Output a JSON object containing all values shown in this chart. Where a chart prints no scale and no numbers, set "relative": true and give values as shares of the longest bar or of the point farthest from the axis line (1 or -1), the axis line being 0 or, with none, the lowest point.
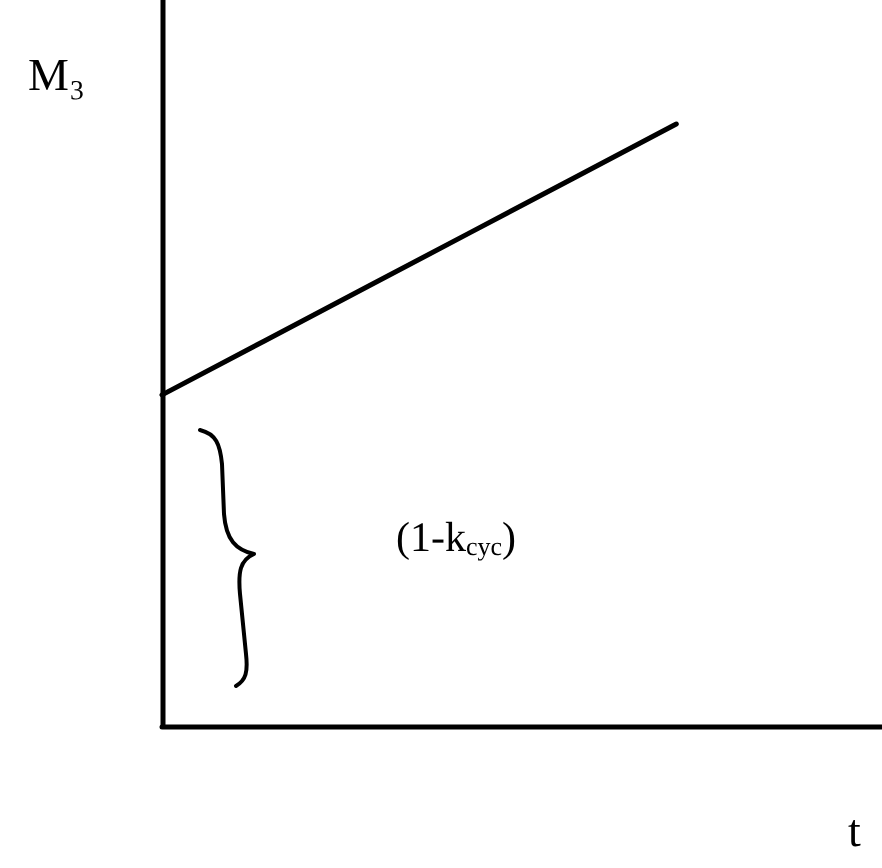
{
  "chart_data": {
    "type": "line",
    "xlabel": "t",
    "ylabel": "M₃",
    "annotations": [
      "(1-k$_{cyc}$)"
    ],
    "categories": [
      null,
      null,
      null,
      null,
      null,
      null,
      null,
      null
    ],
    "values": [
      0.55,
      0.64,
      0.73,
      0.82,
      0.91,
      1,
      null,
      null
    ],
    "color": "#000000",
    "relative": true,
    "tick_labels": false,
    "marker": "none",
    "line_style": "solid",
    "grid": false
  }
}
